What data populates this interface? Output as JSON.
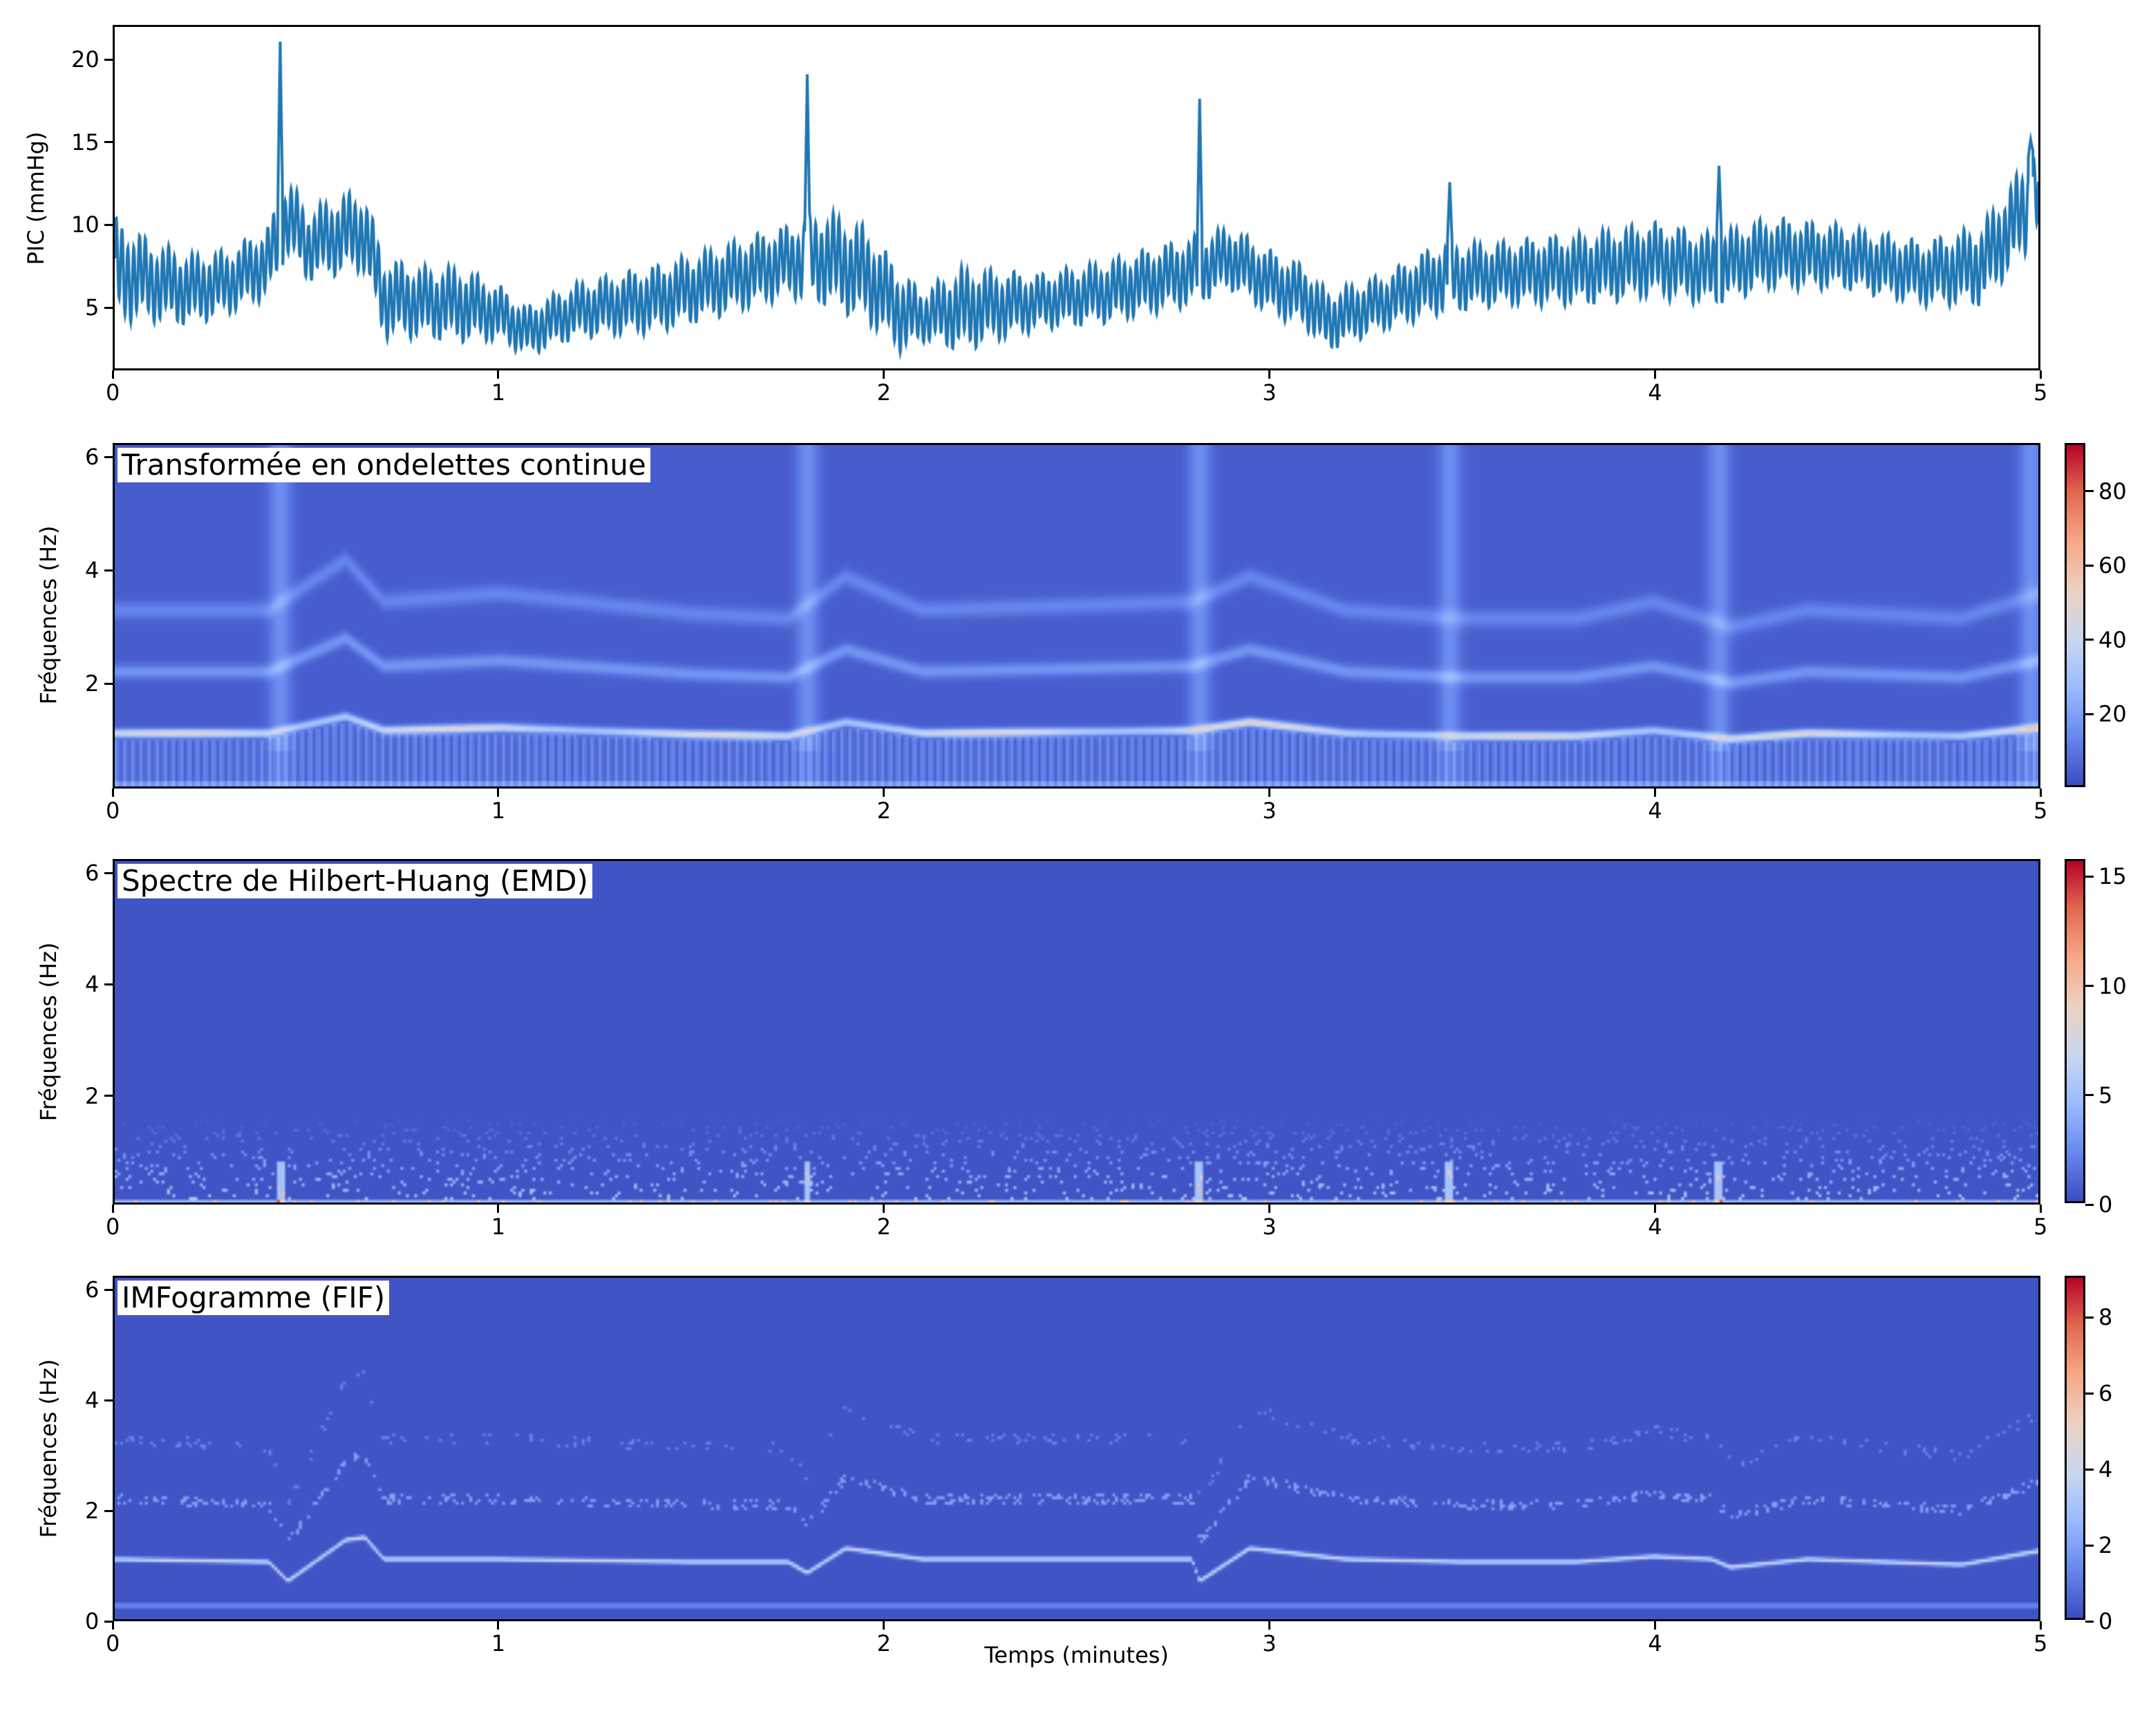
{
  "chart_data": [
    {
      "type": "line",
      "ylabel": "PIC (mmHg)",
      "xlim": [
        0,
        5
      ],
      "ylim": [
        1.2,
        22.1
      ],
      "xticks": [
        0,
        1,
        2,
        3,
        4,
        5
      ],
      "yticks": [
        5,
        10,
        15,
        20
      ],
      "color": "#1f77b4",
      "envelope": {
        "t": [
          0,
          0.1,
          0.2,
          0.3,
          0.4,
          0.45,
          0.5,
          0.6,
          0.65,
          0.7,
          0.8,
          0.9,
          1.0,
          1.07,
          1.2,
          1.4,
          1.6,
          1.75,
          1.85,
          1.95,
          2.05,
          2.1,
          2.2,
          2.4,
          2.6,
          2.8,
          2.9,
          3.0,
          3.1,
          3.15,
          3.3,
          3.45,
          3.6,
          3.8,
          4.0,
          4.15,
          4.3,
          4.5,
          4.7,
          4.85,
          5.0
        ],
        "low": [
          4,
          4,
          3.8,
          4.5,
          5.5,
          8,
          6.5,
          7,
          7,
          3,
          3,
          2.8,
          2.8,
          1.9,
          3,
          3.3,
          4.5,
          5.5,
          5,
          4,
          2,
          2.8,
          2.2,
          3.5,
          4,
          5,
          6,
          4.5,
          3.5,
          2.2,
          3.5,
          4.5,
          5,
          5,
          5.5,
          5,
          6,
          6,
          5,
          5,
          9
        ],
        "high": [
          10.5,
          9,
          8.3,
          8.5,
          10,
          13,
          11,
          12,
          12,
          8,
          7.5,
          7.5,
          6.3,
          5,
          6.5,
          7.5,
          9,
          10,
          11,
          10,
          7,
          6,
          7.5,
          7,
          8,
          9.3,
          10,
          8.5,
          7.5,
          6,
          7,
          9,
          9,
          9.5,
          10.2,
          9.5,
          10.5,
          10,
          9,
          10,
          15
        ]
      },
      "spikes": [
        [
          0.43,
          21.2
        ],
        [
          1.8,
          19.2
        ],
        [
          2.82,
          17.7
        ],
        [
          3.47,
          12.6
        ],
        [
          4.17,
          13.6
        ],
        [
          4.98,
          15.2
        ]
      ]
    },
    {
      "type": "heatmap",
      "title": "Transformée en ondelettes continue",
      "ylabel": "Fréquences (Hz)",
      "xlim": [
        0,
        5
      ],
      "ylim": [
        0.15,
        6.25
      ],
      "xticks": [
        0,
        1,
        2,
        3,
        4,
        5
      ],
      "yticks": [
        2,
        4,
        6
      ],
      "colormap": "coolwarm",
      "clim": [
        0,
        93
      ],
      "cticks": [
        20,
        40,
        60,
        80
      ],
      "ridge": {
        "t": [
          0,
          0.4,
          0.6,
          0.7,
          1.0,
          1.5,
          1.75,
          1.9,
          2.1,
          2.8,
          2.95,
          3.2,
          3.5,
          3.8,
          4.0,
          4.2,
          4.4,
          4.8,
          5.0
        ],
        "f": [
          1.1,
          1.1,
          1.4,
          1.15,
          1.2,
          1.08,
          1.05,
          1.3,
          1.1,
          1.15,
          1.3,
          1.1,
          1.05,
          1.05,
          1.15,
          1.0,
          1.1,
          1.05,
          1.2
        ],
        "peak": 90
      },
      "harmonics": [
        2,
        3
      ],
      "events": [
        0.43,
        1.8,
        2.82,
        3.47,
        4.17,
        4.98
      ]
    },
    {
      "type": "heatmap",
      "title": "Spectre de Hilbert-Huang (EMD)",
      "ylabel": "Fréquences (Hz)",
      "xlim": [
        0,
        5
      ],
      "ylim": [
        0.05,
        6.25
      ],
      "xticks": [
        0,
        1,
        2,
        3,
        4,
        5
      ],
      "yticks": [
        2,
        4,
        6
      ],
      "colormap": "coolwarm",
      "clim": [
        0,
        15.8
      ],
      "cticks": [
        0,
        5,
        10,
        15
      ],
      "events": [
        0.43,
        1.8,
        2.82,
        3.47,
        4.17
      ]
    },
    {
      "type": "heatmap",
      "title": "IMFogramme (FIF)",
      "ylabel": "Fréquences (Hz)",
      "xlabel": "Temps (minutes)",
      "xlim": [
        0,
        5
      ],
      "ylim": [
        0,
        6.25
      ],
      "xticks": [
        0,
        1,
        2,
        3,
        4,
        5
      ],
      "yticks": [
        0,
        2,
        4,
        6
      ],
      "colormap": "coolwarm",
      "clim": [
        0,
        9.1
      ],
      "cticks": [
        0,
        2,
        4,
        6,
        8
      ],
      "ridge": {
        "t": [
          0,
          0.4,
          0.45,
          0.6,
          0.65,
          0.7,
          1.0,
          1.5,
          1.75,
          1.8,
          1.9,
          2.1,
          2.8,
          2.82,
          2.95,
          3.2,
          3.5,
          3.8,
          4.0,
          4.15,
          4.2,
          4.4,
          4.8,
          5.0
        ],
        "f": [
          1.1,
          1.05,
          0.7,
          1.45,
          1.5,
          1.1,
          1.1,
          1.05,
          1.05,
          0.85,
          1.3,
          1.1,
          1.1,
          0.7,
          1.3,
          1.1,
          1.05,
          1.05,
          1.15,
          1.1,
          0.95,
          1.1,
          1.0,
          1.25
        ],
        "peak": 6
      },
      "low_band": 0.25,
      "harmonics": [
        2,
        3
      ]
    }
  ]
}
